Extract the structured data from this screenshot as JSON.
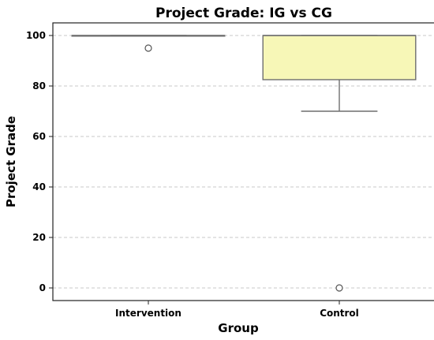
{
  "chart_data": {
    "type": "box",
    "title": "Project Grade: IG vs CG",
    "xlabel": "Group",
    "ylabel": "Project Grade",
    "ylim": [
      -5,
      105
    ],
    "yticks": [
      0,
      20,
      40,
      60,
      80,
      100
    ],
    "grid": true,
    "categories": [
      "Intervention",
      "Control"
    ],
    "boxes": [
      {
        "name": "Intervention",
        "q1": 100,
        "median": 100,
        "q3": 100,
        "whisker_low": 100,
        "whisker_high": 100,
        "outliers": [
          95
        ],
        "color": "#9ecae1"
      },
      {
        "name": "Control",
        "q1": 82.5,
        "median": 100,
        "q3": 100,
        "whisker_low": 70,
        "whisker_high": 100,
        "outliers": [
          0
        ],
        "color": "#f7f7b7"
      }
    ]
  }
}
